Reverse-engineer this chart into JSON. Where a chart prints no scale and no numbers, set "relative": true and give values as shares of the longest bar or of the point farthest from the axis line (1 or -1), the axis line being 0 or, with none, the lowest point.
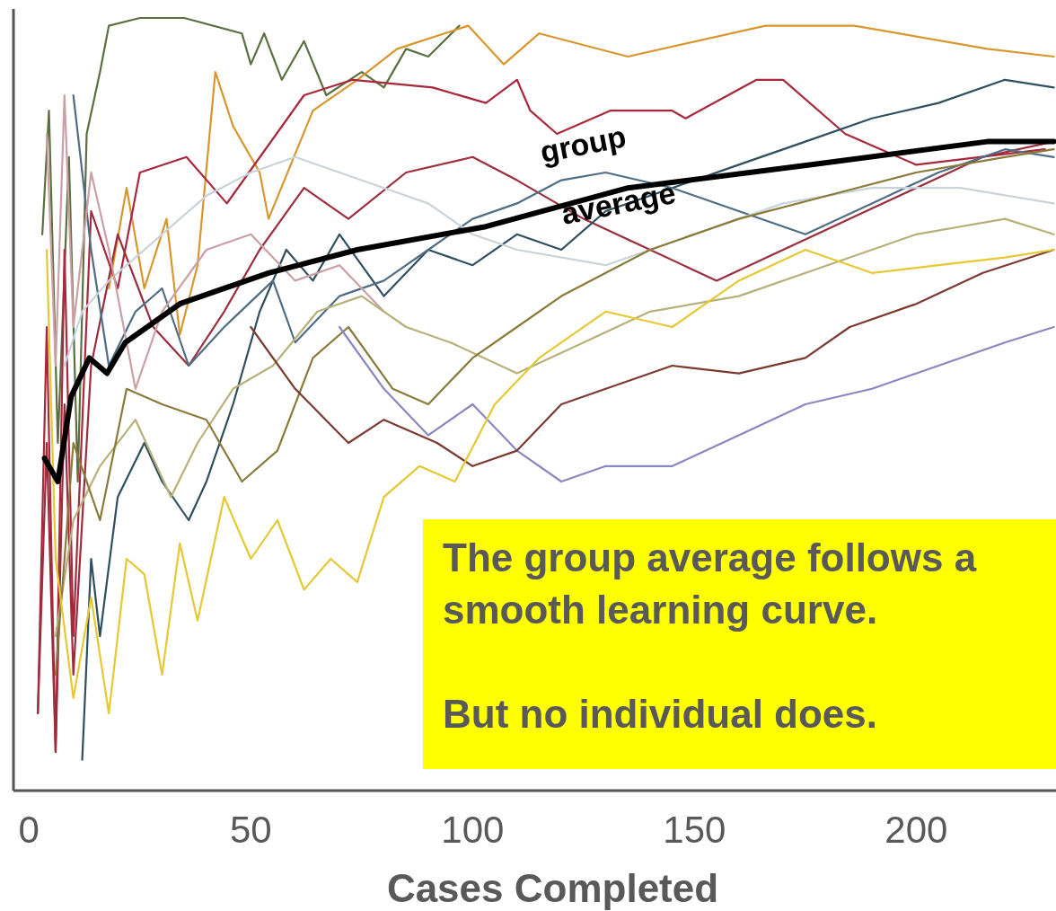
{
  "chart_data": {
    "type": "line",
    "relative": true,
    "xlabel": "Cases Completed",
    "xlim": [
      -3.5,
      231.5
    ],
    "xticks": [
      0,
      50,
      100,
      150,
      200
    ],
    "tick_labels": "x",
    "marker": "none",
    "line_style": "solid",
    "annotations": [
      "The group average follows a smooth learning curve.",
      "But no individual does."
    ],
    "series": [
      {
        "color": "#5b7040",
        "x": [
          3,
          4.5,
          6.5,
          9,
          11,
          13,
          16,
          18,
          25,
          35,
          48,
          50,
          53,
          57,
          62,
          67,
          75,
          80,
          85,
          90,
          97
        ],
        "values": [
          0.72,
          0.88,
          0.45,
          0.82,
          0.4,
          0.85,
          0.93,
          0.99,
          1.0,
          1.0,
          0.98,
          0.94,
          0.98,
          0.92,
          0.97,
          0.9,
          0.93,
          0.91,
          0.96,
          0.95,
          0.99
        ]
      },
      {
        "color": "#d8962e",
        "x": [
          18,
          22,
          26,
          31,
          34,
          38,
          42,
          46,
          52,
          54,
          64,
          74,
          83,
          99,
          107,
          115,
          135,
          166,
          186,
          196,
          216,
          231
        ],
        "values": [
          0.65,
          0.78,
          0.65,
          0.74,
          0.59,
          0.68,
          0.93,
          0.86,
          0.8,
          0.74,
          0.88,
          0.92,
          0.96,
          0.99,
          0.94,
          0.98,
          0.95,
          0.99,
          0.99,
          0.98,
          0.96,
          0.95
        ]
      },
      {
        "color": "#a8283c",
        "x": [
          2,
          4,
          6,
          8,
          10,
          14,
          20,
          25,
          35.5,
          44.6,
          62,
          73,
          91,
          103,
          110,
          113,
          119,
          131,
          145,
          148,
          164,
          170,
          184,
          192,
          200,
          229
        ],
        "values": [
          0.1,
          0.6,
          0.05,
          0.7,
          0.2,
          0.75,
          0.65,
          0.8,
          0.82,
          0.76,
          0.9,
          0.92,
          0.91,
          0.89,
          0.92,
          0.88,
          0.85,
          0.88,
          0.88,
          0.87,
          0.92,
          0.92,
          0.85,
          0.83,
          0.81,
          0.83
        ]
      },
      {
        "color": "#9b2d3c",
        "x": [
          2,
          4,
          6,
          8,
          10,
          14,
          20,
          28,
          36,
          44,
          52,
          62,
          72,
          85,
          100,
          110,
          125,
          140,
          155,
          170,
          185,
          200,
          215,
          231
        ],
        "values": [
          0.1,
          0.45,
          0.05,
          0.5,
          0.15,
          0.55,
          0.72,
          0.6,
          0.55,
          0.62,
          0.7,
          0.78,
          0.74,
          0.8,
          0.82,
          0.79,
          0.74,
          0.7,
          0.66,
          0.7,
          0.74,
          0.78,
          0.82,
          0.84
        ]
      },
      {
        "color": "#2f4f5f",
        "x": [
          12,
          14,
          16,
          20,
          26,
          30,
          36,
          40,
          46,
          52,
          58,
          64,
          70,
          80,
          90,
          100,
          110,
          120,
          130,
          145,
          160,
          175,
          190,
          205,
          220,
          231
        ],
        "values": [
          0.04,
          0.3,
          0.2,
          0.38,
          0.45,
          0.4,
          0.35,
          0.4,
          0.5,
          0.62,
          0.7,
          0.66,
          0.72,
          0.64,
          0.7,
          0.68,
          0.72,
          0.7,
          0.75,
          0.78,
          0.81,
          0.84,
          0.87,
          0.89,
          0.92,
          0.91
        ]
      },
      {
        "color": "#4f6e86",
        "x": [
          10,
          14,
          18,
          24,
          30,
          36,
          44,
          55,
          60,
          70,
          80,
          90,
          100,
          110,
          120,
          130,
          145,
          160,
          175,
          190,
          205,
          220,
          231
        ],
        "values": [
          0.9,
          0.7,
          0.55,
          0.62,
          0.65,
          0.55,
          0.6,
          0.66,
          0.58,
          0.64,
          0.66,
          0.7,
          0.74,
          0.76,
          0.79,
          0.8,
          0.78,
          0.75,
          0.72,
          0.76,
          0.8,
          0.83,
          0.82
        ]
      },
      {
        "color": "#c9d3da",
        "x": [
          8,
          12,
          18,
          30,
          40,
          50,
          60,
          70,
          80,
          90,
          100,
          110,
          130,
          150,
          170,
          190,
          210,
          231
        ],
        "values": [
          0.55,
          0.62,
          0.66,
          0.72,
          0.77,
          0.8,
          0.82,
          0.8,
          0.78,
          0.76,
          0.72,
          0.7,
          0.68,
          0.72,
          0.76,
          0.78,
          0.78,
          0.76
        ]
      },
      {
        "color": "#caa0a4",
        "x": [
          4,
          6,
          8,
          10,
          14,
          18,
          24,
          30,
          40,
          50,
          60,
          70,
          80
        ],
        "values": [
          0.85,
          0.55,
          0.9,
          0.6,
          0.8,
          0.7,
          0.52,
          0.62,
          0.7,
          0.72,
          0.66,
          0.68,
          0.62
        ]
      },
      {
        "color": "#b8b07a",
        "x": [
          6,
          10,
          16,
          24,
          32,
          38,
          46,
          55,
          65,
          75,
          85,
          95,
          110,
          125,
          140,
          160,
          180,
          200,
          220,
          231
        ],
        "values": [
          0.2,
          0.35,
          0.42,
          0.48,
          0.38,
          0.45,
          0.52,
          0.55,
          0.62,
          0.64,
          0.6,
          0.58,
          0.54,
          0.58,
          0.62,
          0.64,
          0.68,
          0.72,
          0.74,
          0.72
        ]
      },
      {
        "color": "#8a7a3a",
        "x": [
          6,
          10,
          16,
          22,
          30,
          40,
          48,
          56,
          64,
          72,
          82,
          90,
          100,
          110,
          120,
          140,
          160,
          180,
          200,
          220,
          231
        ],
        "values": [
          0.15,
          0.45,
          0.35,
          0.52,
          0.5,
          0.48,
          0.4,
          0.44,
          0.56,
          0.6,
          0.52,
          0.5,
          0.56,
          0.6,
          0.64,
          0.7,
          0.74,
          0.77,
          0.8,
          0.82,
          0.83
        ]
      },
      {
        "color": "#8a86c0",
        "x": [
          70,
          80,
          90,
          100,
          110,
          120,
          130,
          145,
          160,
          175,
          190,
          205,
          220,
          231
        ],
        "values": [
          0.6,
          0.52,
          0.46,
          0.5,
          0.44,
          0.4,
          0.42,
          0.42,
          0.46,
          0.5,
          0.52,
          0.55,
          0.58,
          0.6
        ]
      },
      {
        "color": "#7a3a30",
        "x": [
          50,
          60,
          72,
          80,
          92,
          100,
          110,
          120,
          130,
          145,
          160,
          175,
          185,
          200,
          215,
          231
        ],
        "values": [
          0.6,
          0.52,
          0.45,
          0.48,
          0.45,
          0.42,
          0.44,
          0.5,
          0.52,
          0.55,
          0.54,
          0.56,
          0.6,
          0.63,
          0.67,
          0.7
        ]
      },
      {
        "color": "#e6c832",
        "x": [
          4,
          6,
          10,
          14,
          18,
          22,
          26,
          30,
          34,
          38,
          44,
          50,
          56,
          62,
          68,
          74,
          80,
          88,
          96,
          105,
          115,
          130,
          145,
          160,
          175,
          190,
          205,
          220,
          231
        ],
        "values": [
          0.7,
          0.3,
          0.12,
          0.25,
          0.1,
          0.3,
          0.28,
          0.15,
          0.32,
          0.22,
          0.38,
          0.3,
          0.35,
          0.26,
          0.3,
          0.27,
          0.38,
          0.42,
          0.4,
          0.5,
          0.56,
          0.62,
          0.6,
          0.66,
          0.7,
          0.67,
          0.68,
          0.69,
          0.7
        ]
      },
      {
        "name": "group average",
        "color": "#000000",
        "x": [
          3.5,
          6.5,
          9.5,
          13.6,
          17.6,
          21.7,
          34,
          54,
          74,
          103,
          135,
          176,
          216,
          231
        ],
        "values": [
          0.43,
          0.4,
          0.51,
          0.56,
          0.54,
          0.58,
          0.63,
          0.67,
          0.7,
          0.73,
          0.78,
          0.81,
          0.84,
          0.84
        ]
      }
    ]
  }
}
